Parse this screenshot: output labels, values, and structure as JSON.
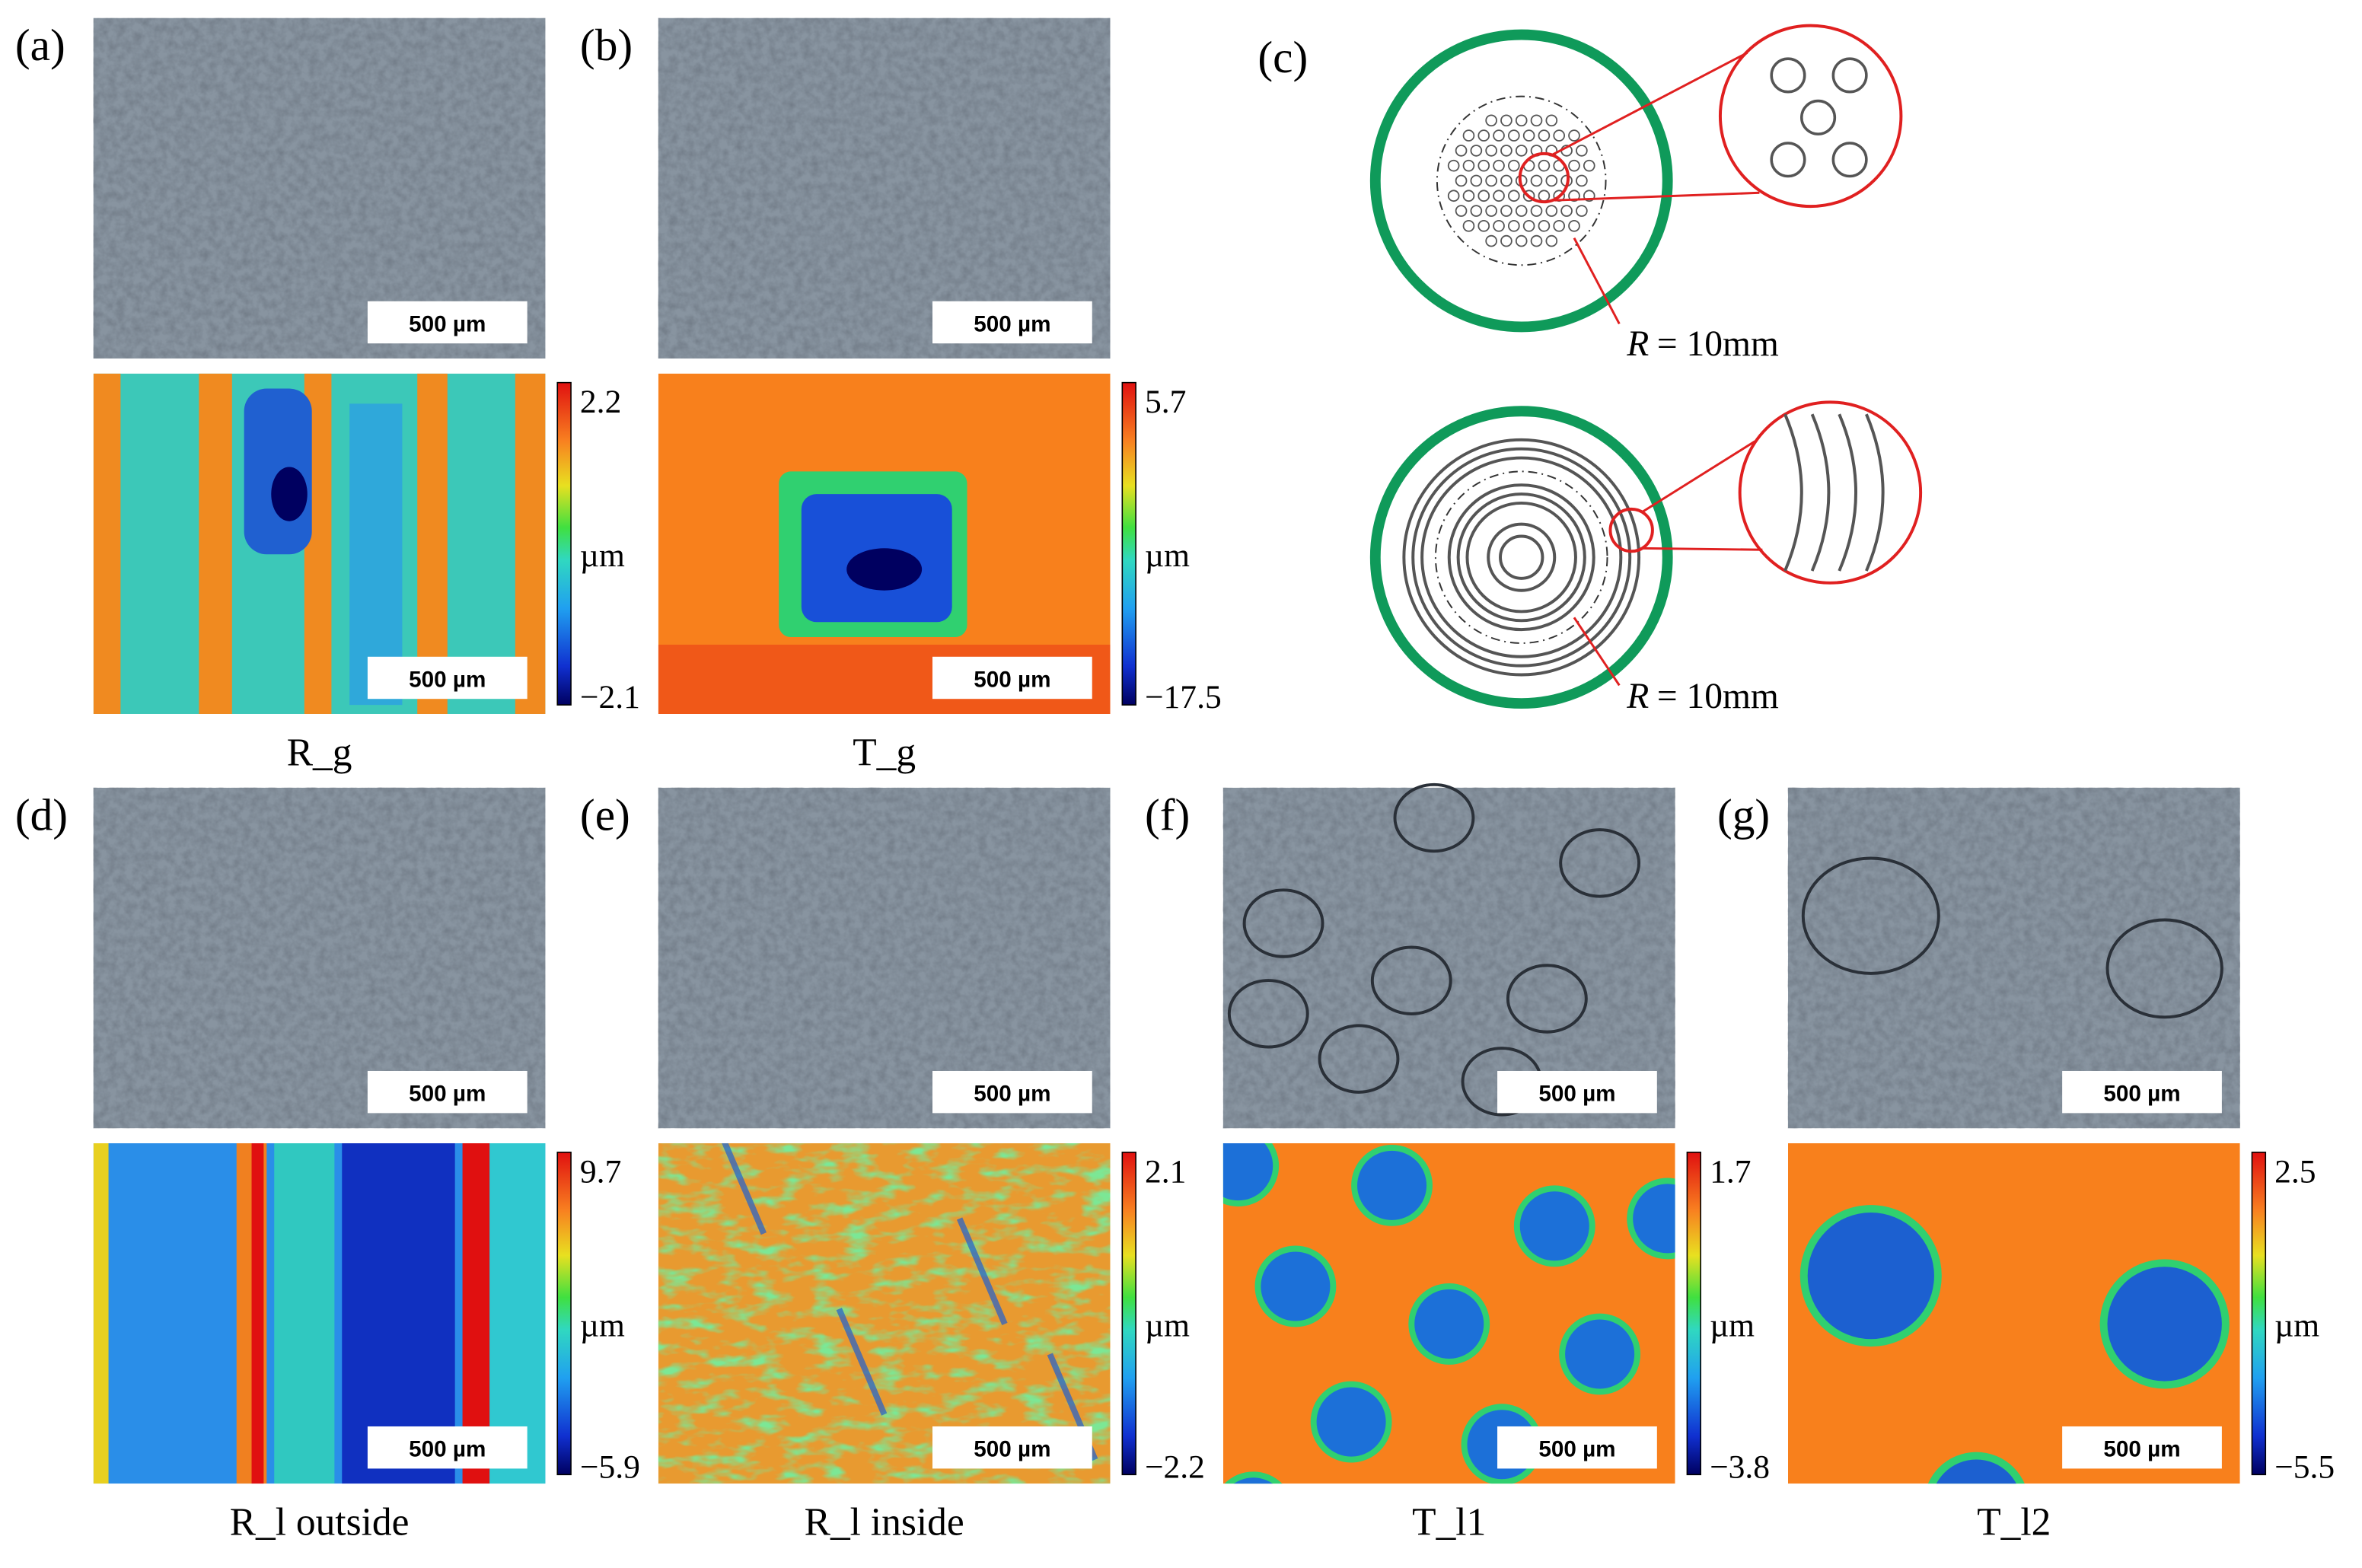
{
  "panels": [
    {
      "label": "(a)",
      "photo_scale": "500 µm",
      "map_scale": "500 µm",
      "colorbar": {
        "max": "2.2",
        "unit": "µm",
        "min": "−2.1"
      },
      "caption": "R_g"
    },
    {
      "label": "(b)",
      "photo_scale": "500 µm",
      "map_scale": "500 µm",
      "colorbar": {
        "max": "5.7",
        "unit": "µm",
        "min": "−17.5"
      },
      "caption": "T_g"
    },
    {
      "label": "(d)",
      "photo_scale": "500 µm",
      "map_scale": "500 µm",
      "colorbar": {
        "max": "9.7",
        "unit": "µm",
        "min": "−5.9"
      },
      "caption": "R_l outside"
    },
    {
      "label": "(e)",
      "photo_scale": "500 µm",
      "map_scale": "500 µm",
      "colorbar": {
        "max": "2.1",
        "unit": "µm",
        "min": "−2.2"
      },
      "caption": "R_l inside"
    },
    {
      "label": "(f)",
      "photo_scale": "500 µm",
      "map_scale": "500 µm",
      "colorbar": {
        "max": "1.7",
        "unit": "µm",
        "min": "−3.8"
      },
      "caption": "T_l1"
    },
    {
      "label": "(g)",
      "photo_scale": "500 µm",
      "map_scale": "500 µm",
      "colorbar": {
        "max": "2.5",
        "unit": "µm",
        "min": "−5.5"
      },
      "caption": "T_l2"
    }
  ],
  "diagram": {
    "label": "(c)",
    "top_radius": {
      "symbol": "R",
      "text": "= 10mm"
    },
    "bottom_radius": {
      "symbol": "R",
      "text": "= 10mm"
    }
  }
}
